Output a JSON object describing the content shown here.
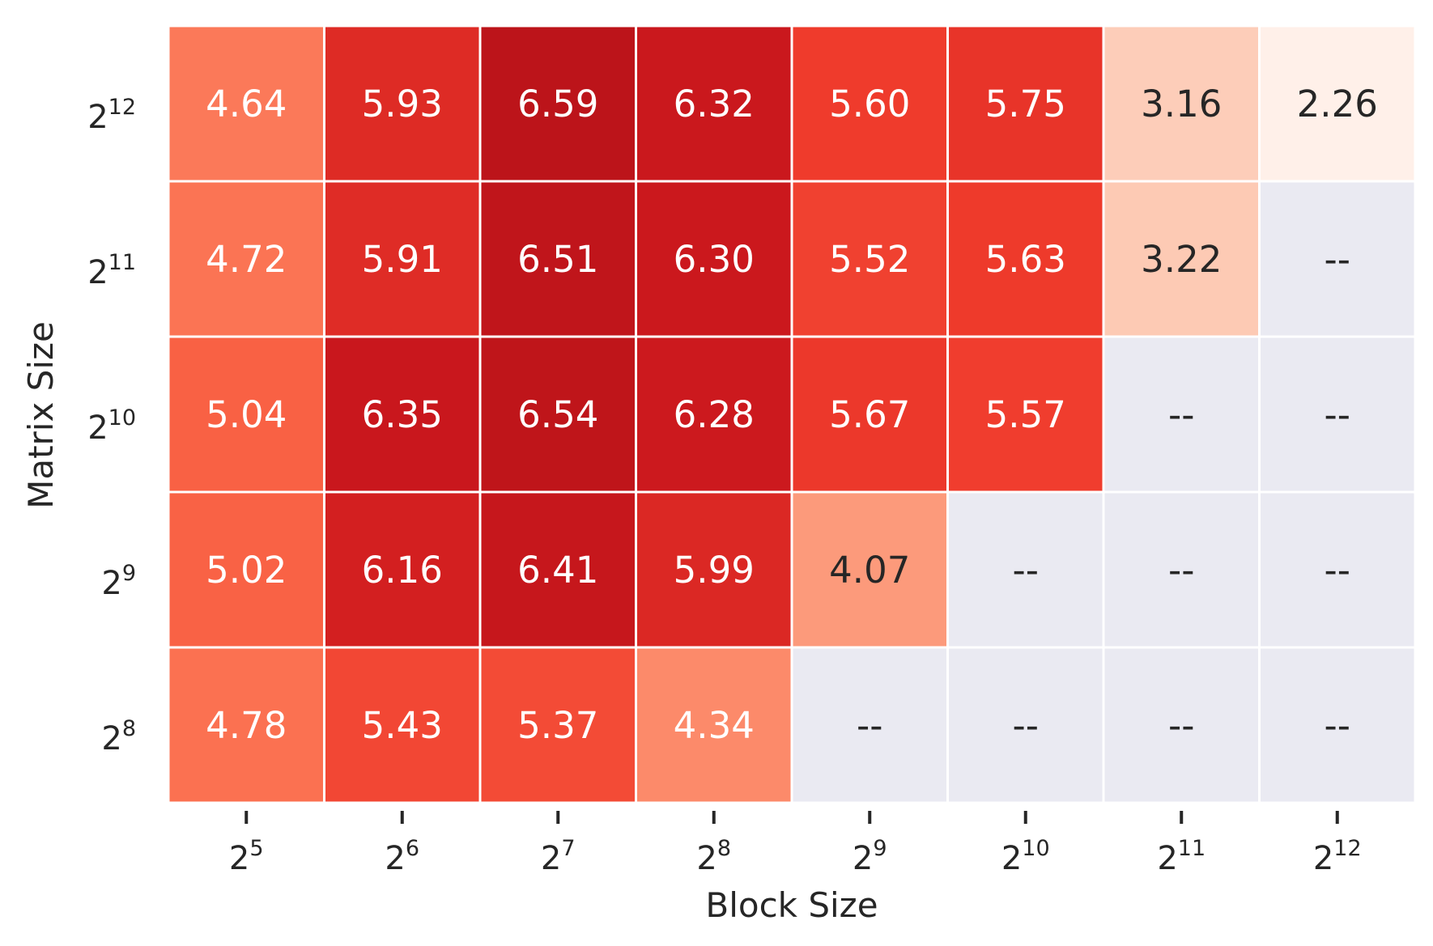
{
  "chart_data": {
    "type": "heatmap",
    "title": "",
    "xlabel": "Block Size",
    "ylabel": "Matrix Size",
    "x_ticks": [
      {
        "base": "2",
        "exp": "5"
      },
      {
        "base": "2",
        "exp": "6"
      },
      {
        "base": "2",
        "exp": "7"
      },
      {
        "base": "2",
        "exp": "8"
      },
      {
        "base": "2",
        "exp": "9"
      },
      {
        "base": "2",
        "exp": "10"
      },
      {
        "base": "2",
        "exp": "11"
      },
      {
        "base": "2",
        "exp": "12"
      }
    ],
    "y_ticks": [
      {
        "base": "2",
        "exp": "12"
      },
      {
        "base": "2",
        "exp": "11"
      },
      {
        "base": "2",
        "exp": "10"
      },
      {
        "base": "2",
        "exp": "9"
      },
      {
        "base": "2",
        "exp": "8"
      }
    ],
    "values": [
      [
        4.64,
        5.93,
        6.59,
        6.32,
        5.6,
        5.75,
        3.16,
        2.26
      ],
      [
        4.72,
        5.91,
        6.51,
        6.3,
        5.52,
        5.63,
        3.22,
        null
      ],
      [
        5.04,
        6.35,
        6.54,
        6.28,
        5.67,
        5.57,
        null,
        null
      ],
      [
        5.02,
        6.16,
        6.41,
        5.99,
        4.07,
        null,
        null,
        null
      ],
      [
        4.78,
        5.43,
        5.37,
        4.34,
        null,
        null,
        null,
        null
      ]
    ],
    "value_format": 2,
    "missing_label": "--",
    "colormap": "Reds",
    "vmin": 2.26,
    "vmax": 6.59,
    "missing_color": "#eaeaf2",
    "grid": false,
    "legend": "none"
  }
}
